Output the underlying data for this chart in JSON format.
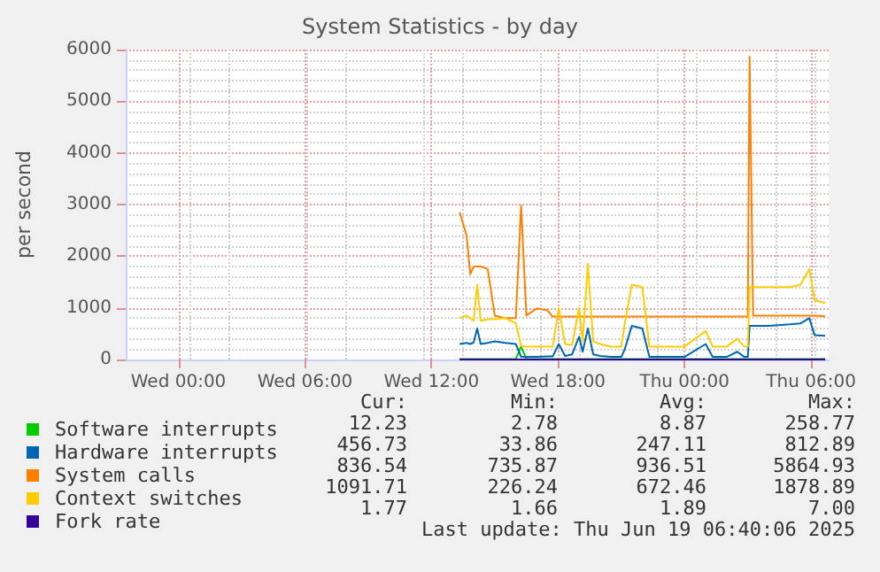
{
  "chart_data": {
    "type": "line",
    "title": "System Statistics - by day",
    "ylabel": "per second",
    "x": [
      "2025-06-18T13:20",
      "2025-06-18T13:40",
      "2025-06-18T13:50",
      "2025-06-18T14:00",
      "2025-06-18T14:10",
      "2025-06-18T14:20",
      "2025-06-18T14:40",
      "2025-06-18T15:00",
      "2025-06-18T15:30",
      "2025-06-18T16:00",
      "2025-06-18T16:15",
      "2025-06-18T16:30",
      "2025-06-18T17:00",
      "2025-06-18T17:30",
      "2025-06-18T17:45",
      "2025-06-18T18:02",
      "2025-06-18T18:20",
      "2025-06-18T18:40",
      "2025-06-18T19:00",
      "2025-06-18T19:10",
      "2025-06-18T19:25",
      "2025-06-18T19:40",
      "2025-06-18T20:00",
      "2025-06-18T20:30",
      "2025-06-18T21:00",
      "2025-06-18T21:10",
      "2025-06-18T21:30",
      "2025-06-18T22:00",
      "2025-06-18T22:20",
      "2025-06-18T23:00",
      "2025-06-19T00:00",
      "2025-06-19T01:00",
      "2025-06-19T01:20",
      "2025-06-19T02:00",
      "2025-06-19T02:30",
      "2025-06-19T02:50",
      "2025-06-19T03:00",
      "2025-06-19T03:05",
      "2025-06-19T03:15",
      "2025-06-19T04:00",
      "2025-06-19T05:00",
      "2025-06-19T05:30",
      "2025-06-19T05:55",
      "2025-06-19T06:10",
      "2025-06-19T06:40"
    ],
    "series": [
      {
        "name": "Software interrupts",
        "color": "#00cc00",
        "values": [
          10,
          10,
          10,
          10,
          10,
          10,
          10,
          10,
          10,
          10,
          250,
          10,
          10,
          10,
          10,
          10,
          10,
          10,
          10,
          10,
          10,
          10,
          10,
          10,
          10,
          10,
          10,
          10,
          10,
          10,
          10,
          10,
          10,
          10,
          10,
          10,
          10,
          10,
          10,
          10,
          10,
          10,
          10,
          10,
          12
        ]
      },
      {
        "name": "Hardware interrupts",
        "color": "#0066b3",
        "values": [
          300,
          320,
          300,
          330,
          600,
          300,
          320,
          350,
          320,
          300,
          50,
          50,
          50,
          60,
          60,
          300,
          70,
          100,
          440,
          150,
          600,
          100,
          70,
          50,
          50,
          200,
          650,
          600,
          50,
          50,
          50,
          300,
          50,
          50,
          150,
          50,
          50,
          650,
          650,
          650,
          680,
          700,
          800,
          470,
          457
        ]
      },
      {
        "name": "System calls",
        "color": "#ff8000",
        "values": [
          2850,
          2400,
          1650,
          1800,
          1800,
          1800,
          1750,
          850,
          800,
          800,
          2980,
          850,
          990,
          950,
          830,
          830,
          830,
          830,
          830,
          830,
          830,
          830,
          830,
          830,
          830,
          830,
          830,
          830,
          830,
          830,
          830,
          830,
          830,
          830,
          830,
          830,
          830,
          5865,
          850,
          850,
          850,
          850,
          850,
          850,
          837
        ]
      },
      {
        "name": "Context switches",
        "color": "#ffcc00",
        "values": [
          800,
          850,
          800,
          750,
          1450,
          750,
          780,
          780,
          800,
          700,
          260,
          250,
          250,
          250,
          250,
          1000,
          300,
          280,
          1000,
          350,
          1850,
          350,
          300,
          250,
          250,
          700,
          1450,
          1400,
          250,
          250,
          250,
          550,
          250,
          250,
          400,
          250,
          250,
          1400,
          1400,
          1400,
          1400,
          1450,
          1750,
          1150,
          1092
        ]
      },
      {
        "name": "Fork rate",
        "color": "#330099",
        "values": [
          2,
          2,
          2,
          2,
          2,
          2,
          2,
          2,
          2,
          2,
          2,
          2,
          2,
          2,
          2,
          2,
          2,
          2,
          2,
          2,
          2,
          2,
          2,
          2,
          2,
          2,
          2,
          2,
          2,
          2,
          2,
          2,
          2,
          2,
          2,
          2,
          2,
          2,
          2,
          2,
          2,
          2,
          2,
          2,
          2
        ]
      }
    ],
    "xlim": [
      "2025-06-17T21:30",
      "2025-06-19T06:50"
    ],
    "xticks": [
      {
        "value": "2025-06-18T00:00",
        "label": "Wed 00:00"
      },
      {
        "value": "2025-06-18T06:00",
        "label": "Wed 06:00"
      },
      {
        "value": "2025-06-18T12:00",
        "label": "Wed 12:00"
      },
      {
        "value": "2025-06-18T18:00",
        "label": "Wed 18:00"
      },
      {
        "value": "2025-06-19T00:00",
        "label": "Thu 00:00"
      },
      {
        "value": "2025-06-19T06:00",
        "label": "Thu 06:00"
      }
    ],
    "ylim": [
      0,
      6000
    ],
    "yticks": [
      0,
      1000,
      2000,
      3000,
      4000,
      5000,
      6000
    ],
    "grid": true,
    "legend": "bottom",
    "marker": "none",
    "line_style": "solid",
    "annotations": [
      "Cur:",
      "Min:",
      "Avg:",
      "Max:",
      "12.23",
      "2.78",
      "8.87",
      "258.77",
      "456.73",
      "33.86",
      "247.11",
      "812.89",
      "836.54",
      "735.87",
      "936.51",
      "5864.93",
      "1091.71",
      "226.24",
      "672.46",
      "1878.89",
      "1.77",
      "1.66",
      "1.89",
      "7.00",
      "Last update: Thu Jun 19 06:40:06 2025"
    ]
  }
}
